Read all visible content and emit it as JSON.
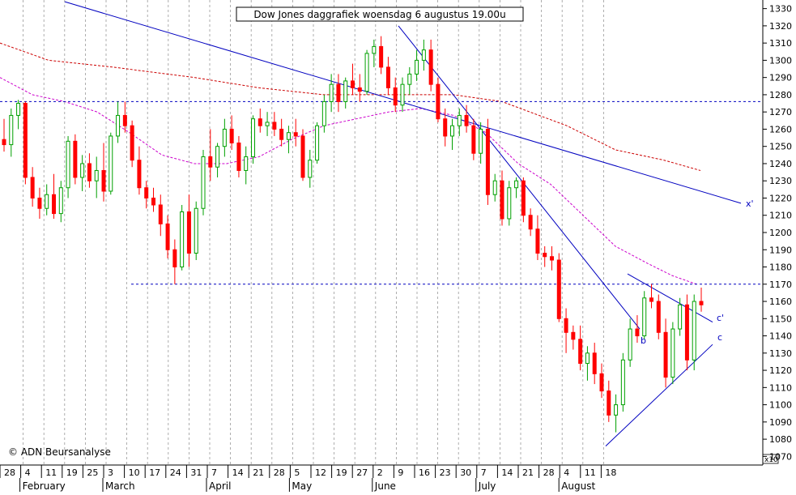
{
  "chart_data": {
    "type": "candlestick",
    "title": "Dow Jones daggrafiek woensdag 6 augustus 19.00u",
    "watermark": "© ADN Beursanalyse",
    "y_unit_label": "x10",
    "ylim": [
      1065,
      1335
    ],
    "yticks": [
      1070,
      1080,
      1090,
      1100,
      1110,
      1120,
      1130,
      1140,
      1150,
      1160,
      1170,
      1180,
      1190,
      1200,
      1210,
      1220,
      1230,
      1240,
      1250,
      1260,
      1270,
      1280,
      1290,
      1300,
      1310,
      1320,
      1330
    ],
    "day_ticks": [
      "28",
      "4",
      "11",
      "19",
      "25",
      "3",
      "10",
      "17",
      "24",
      "31",
      "7",
      "14",
      "21",
      "28",
      "5",
      "12",
      "19",
      "27",
      "2",
      "9",
      "16",
      "23",
      "30",
      "7",
      "14",
      "21",
      "28",
      "4",
      "11",
      "18"
    ],
    "months": [
      "February",
      "March",
      "April",
      "May",
      "June",
      "July",
      "August"
    ],
    "colors": {
      "up": "#00a000",
      "down": "#ff0000",
      "trend": "#0000c0",
      "ma_long": "#cc0000",
      "ma_short": "#cc00cc",
      "level": "#0000c0"
    },
    "levels": [
      1276,
      1170
    ],
    "wave_labels": [
      "x'",
      "c'",
      "c",
      "b"
    ],
    "candles": [
      [
        1254,
        1266,
        1247,
        1251
      ],
      [
        1251,
        1272,
        1244,
        1268
      ],
      [
        1268,
        1277,
        1260,
        1275
      ],
      [
        1275,
        1276,
        1228,
        1232
      ],
      [
        1232,
        1238,
        1215,
        1220
      ],
      [
        1220,
        1226,
        1208,
        1214
      ],
      [
        1214,
        1228,
        1210,
        1222
      ],
      [
        1222,
        1234,
        1208,
        1211
      ],
      [
        1211,
        1230,
        1206,
        1226
      ],
      [
        1226,
        1256,
        1220,
        1253
      ],
      [
        1253,
        1257,
        1228,
        1232
      ],
      [
        1232,
        1245,
        1224,
        1240
      ],
      [
        1240,
        1246,
        1226,
        1230
      ],
      [
        1230,
        1244,
        1220,
        1236
      ],
      [
        1236,
        1252,
        1218,
        1224
      ],
      [
        1224,
        1258,
        1222,
        1256
      ],
      [
        1256,
        1276,
        1252,
        1268
      ],
      [
        1268,
        1276,
        1258,
        1262
      ],
      [
        1262,
        1265,
        1238,
        1242
      ],
      [
        1242,
        1250,
        1222,
        1226
      ],
      [
        1226,
        1230,
        1214,
        1220
      ],
      [
        1220,
        1226,
        1212,
        1216
      ],
      [
        1216,
        1222,
        1198,
        1205
      ],
      [
        1205,
        1210,
        1185,
        1190
      ],
      [
        1190,
        1196,
        1170,
        1180
      ],
      [
        1180,
        1216,
        1178,
        1212
      ],
      [
        1212,
        1222,
        1180,
        1188
      ],
      [
        1188,
        1218,
        1184,
        1214
      ],
      [
        1214,
        1248,
        1210,
        1244
      ],
      [
        1244,
        1260,
        1230,
        1238
      ],
      [
        1238,
        1252,
        1232,
        1250
      ],
      [
        1250,
        1266,
        1244,
        1260
      ],
      [
        1260,
        1268,
        1248,
        1252
      ],
      [
        1252,
        1256,
        1232,
        1236
      ],
      [
        1236,
        1250,
        1228,
        1244
      ],
      [
        1244,
        1268,
        1240,
        1266
      ],
      [
        1266,
        1272,
        1258,
        1262
      ],
      [
        1262,
        1270,
        1256,
        1264
      ],
      [
        1264,
        1270,
        1256,
        1260
      ],
      [
        1260,
        1266,
        1250,
        1254
      ],
      [
        1254,
        1262,
        1246,
        1258
      ],
      [
        1258,
        1266,
        1250,
        1256
      ],
      [
        1256,
        1260,
        1230,
        1232
      ],
      [
        1232,
        1248,
        1226,
        1242
      ],
      [
        1242,
        1264,
        1240,
        1262
      ],
      [
        1262,
        1280,
        1258,
        1276
      ],
      [
        1276,
        1292,
        1270,
        1286
      ],
      [
        1286,
        1292,
        1270,
        1276
      ],
      [
        1276,
        1290,
        1272,
        1288
      ],
      [
        1288,
        1298,
        1280,
        1284
      ],
      [
        1284,
        1292,
        1276,
        1282
      ],
      [
        1282,
        1306,
        1280,
        1304
      ],
      [
        1304,
        1312,
        1296,
        1308
      ],
      [
        1308,
        1314,
        1292,
        1296
      ],
      [
        1296,
        1302,
        1280,
        1284
      ],
      [
        1284,
        1290,
        1270,
        1274
      ],
      [
        1274,
        1290,
        1270,
        1286
      ],
      [
        1286,
        1296,
        1280,
        1292
      ],
      [
        1292,
        1306,
        1288,
        1300
      ],
      [
        1300,
        1312,
        1294,
        1306
      ],
      [
        1306,
        1312,
        1282,
        1286
      ],
      [
        1286,
        1290,
        1264,
        1266
      ],
      [
        1266,
        1272,
        1250,
        1256
      ],
      [
        1256,
        1266,
        1248,
        1262
      ],
      [
        1262,
        1272,
        1256,
        1268
      ],
      [
        1268,
        1274,
        1258,
        1262
      ],
      [
        1262,
        1266,
        1242,
        1246
      ],
      [
        1246,
        1264,
        1240,
        1260
      ],
      [
        1260,
        1266,
        1216,
        1222
      ],
      [
        1222,
        1234,
        1218,
        1230
      ],
      [
        1230,
        1236,
        1204,
        1208
      ],
      [
        1208,
        1230,
        1204,
        1226
      ],
      [
        1226,
        1232,
        1220,
        1230
      ],
      [
        1230,
        1232,
        1206,
        1210
      ],
      [
        1210,
        1214,
        1198,
        1202
      ],
      [
        1202,
        1210,
        1184,
        1188
      ],
      [
        1188,
        1192,
        1180,
        1186
      ],
      [
        1186,
        1192,
        1178,
        1184
      ],
      [
        1184,
        1188,
        1148,
        1150
      ],
      [
        1150,
        1156,
        1130,
        1142
      ],
      [
        1142,
        1146,
        1132,
        1138
      ],
      [
        1138,
        1146,
        1120,
        1124
      ],
      [
        1124,
        1134,
        1114,
        1130
      ],
      [
        1130,
        1136,
        1112,
        1118
      ],
      [
        1118,
        1124,
        1104,
        1108
      ],
      [
        1108,
        1114,
        1090,
        1094
      ],
      [
        1094,
        1106,
        1084,
        1100
      ],
      [
        1100,
        1130,
        1096,
        1126
      ],
      [
        1126,
        1150,
        1122,
        1144
      ],
      [
        1144,
        1152,
        1136,
        1140
      ],
      [
        1140,
        1166,
        1138,
        1162
      ],
      [
        1162,
        1170,
        1156,
        1160
      ],
      [
        1160,
        1164,
        1138,
        1142
      ],
      [
        1142,
        1150,
        1110,
        1116
      ],
      [
        1116,
        1148,
        1112,
        1144
      ],
      [
        1144,
        1162,
        1140,
        1158
      ],
      [
        1158,
        1164,
        1120,
        1126
      ],
      [
        1126,
        1164,
        1120,
        1160
      ],
      [
        1160,
        1168,
        1154,
        1158
      ]
    ],
    "ma_long": [
      [
        0,
        1310
      ],
      [
        60,
        1300
      ],
      [
        140,
        1296
      ],
      [
        240,
        1290
      ],
      [
        320,
        1284
      ],
      [
        400,
        1280
      ],
      [
        480,
        1280
      ],
      [
        560,
        1280
      ],
      [
        620,
        1276
      ],
      [
        700,
        1262
      ],
      [
        760,
        1248
      ],
      [
        820,
        1242
      ],
      [
        865,
        1236
      ]
    ],
    "ma_short": [
      [
        0,
        1290
      ],
      [
        40,
        1280
      ],
      [
        80,
        1276
      ],
      [
        120,
        1270
      ],
      [
        160,
        1258
      ],
      [
        200,
        1245
      ],
      [
        240,
        1240
      ],
      [
        280,
        1240
      ],
      [
        320,
        1244
      ],
      [
        360,
        1254
      ],
      [
        400,
        1262
      ],
      [
        440,
        1266
      ],
      [
        480,
        1270
      ],
      [
        520,
        1272
      ],
      [
        560,
        1268
      ],
      [
        600,
        1258
      ],
      [
        640,
        1240
      ],
      [
        680,
        1228
      ],
      [
        720,
        1210
      ],
      [
        760,
        1192
      ],
      [
        800,
        1182
      ],
      [
        830,
        1175
      ],
      [
        860,
        1170
      ]
    ],
    "trend_lines": [
      {
        "from": [
          80,
          1334
        ],
        "to": [
          915,
          1217
        ]
      },
      {
        "from": [
          492,
          1320
        ],
        "to": [
          790,
          1144
        ]
      },
      {
        "from": [
          775,
          1176
        ],
        "to": [
          880,
          1148
        ]
      },
      {
        "from": [
          748,
          1076
        ],
        "to": [
          880,
          1135
        ]
      }
    ]
  }
}
